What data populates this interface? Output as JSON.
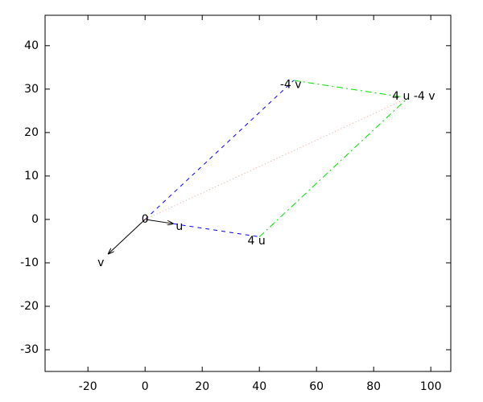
{
  "chart_data": {
    "type": "vector",
    "xlim": [
      -35,
      107
    ],
    "ylim": [
      -35,
      47
    ],
    "xticks": [
      -20,
      0,
      20,
      40,
      60,
      80,
      100
    ],
    "yticks": [
      -30,
      -20,
      -10,
      0,
      10,
      20,
      30,
      40
    ],
    "segments": [
      {
        "x": [
          0,
          10
        ],
        "y": [
          0,
          -1
        ],
        "color": "#000000",
        "dash": "solid",
        "arrow": true
      },
      {
        "x": [
          0,
          -13
        ],
        "y": [
          0,
          -8
        ],
        "color": "#000000",
        "dash": "solid",
        "arrow": true
      },
      {
        "x": [
          0,
          52
        ],
        "y": [
          0,
          32
        ],
        "color": "#0000ff",
        "dash": "dashed",
        "arrow": false
      },
      {
        "x": [
          10,
          40
        ],
        "y": [
          -1,
          -4
        ],
        "color": "#0000ff",
        "dash": "dashed",
        "arrow": false
      },
      {
        "x": [
          40,
          92
        ],
        "y": [
          -4,
          28
        ],
        "color": "#00dd00",
        "dash": "dashdot",
        "arrow": false
      },
      {
        "x": [
          52,
          92
        ],
        "y": [
          32,
          28
        ],
        "color": "#00dd00",
        "dash": "dashdot",
        "arrow": false
      },
      {
        "x": [
          0,
          92
        ],
        "y": [
          0,
          28
        ],
        "color": "#ff9999",
        "dash": "dotted",
        "arrow": false
      }
    ],
    "labels": [
      {
        "text": "0",
        "x": 0,
        "y": 0
      },
      {
        "text": "u",
        "x": 12,
        "y": -1.7
      },
      {
        "text": "v",
        "x": -15.5,
        "y": -10
      },
      {
        "text": "4 u",
        "x": 39,
        "y": -5
      },
      {
        "text": "-4 v",
        "x": 51,
        "y": 31
      },
      {
        "text": "4 u -4 v",
        "x": 94,
        "y": 28.3
      }
    ]
  }
}
